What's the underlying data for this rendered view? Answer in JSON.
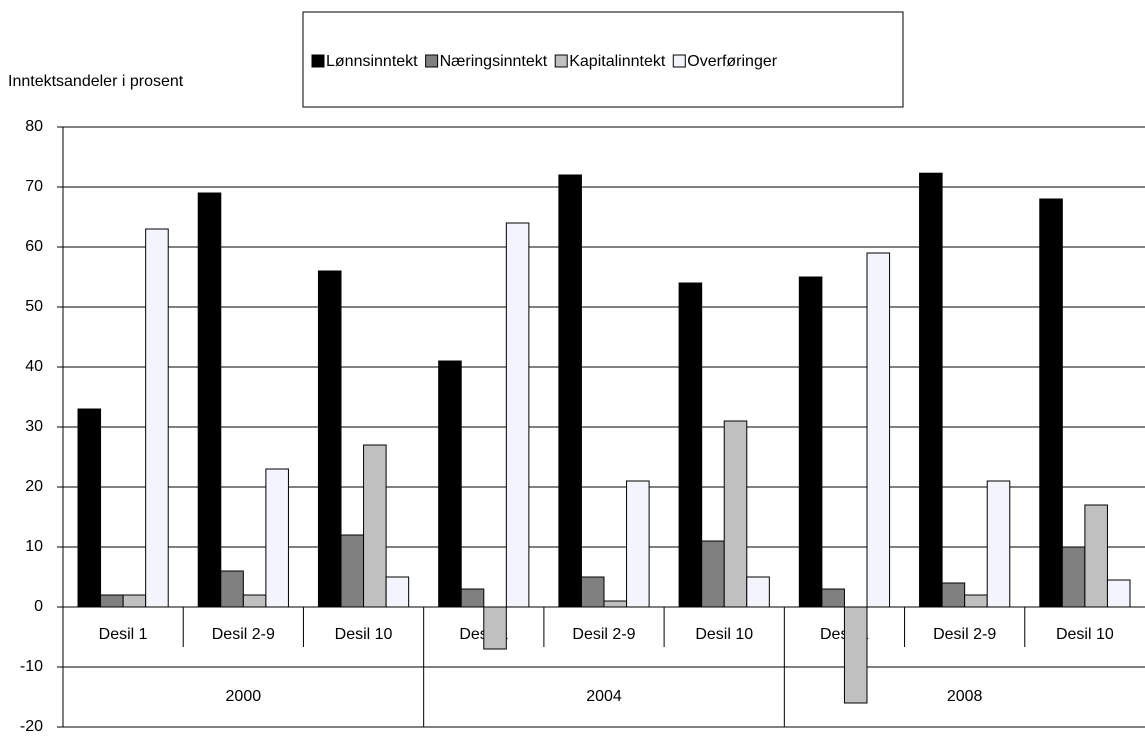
{
  "chart_data": {
    "type": "bar",
    "y_axis_label": "Inntektsandeler i prosent",
    "categories": [
      "Desil 1",
      "Desil 2-9",
      "Desil 10",
      "Desil 1",
      "Desil 2-9",
      "Desil 10",
      "Desil 1",
      "Desil 2-9",
      "Desil 10"
    ],
    "category_groups": [
      "2000",
      "2004",
      "2008"
    ],
    "series": [
      {
        "name": "Lønnsinntekt",
        "color": "#000000",
        "values": [
          33,
          69,
          56,
          41,
          72,
          54,
          55,
          72.3,
          68
        ]
      },
      {
        "name": "Næringsinntekt",
        "color": "#808080",
        "values": [
          2,
          6,
          12,
          3,
          5,
          11,
          3,
          4,
          10
        ]
      },
      {
        "name": "Kapitalinntekt",
        "color": "#c0c0c0",
        "values": [
          2,
          2,
          27,
          -7,
          1,
          31,
          -16,
          2,
          17
        ]
      },
      {
        "name": "Overføringer",
        "color": "#f4f4fc",
        "values": [
          63,
          23,
          5,
          64,
          21,
          5,
          59,
          21,
          4.5
        ]
      }
    ],
    "ylim": [
      -20,
      80
    ],
    "yticks": [
      -20,
      -10,
      0,
      10,
      20,
      30,
      40,
      50,
      60,
      70,
      80
    ],
    "grid": true
  }
}
